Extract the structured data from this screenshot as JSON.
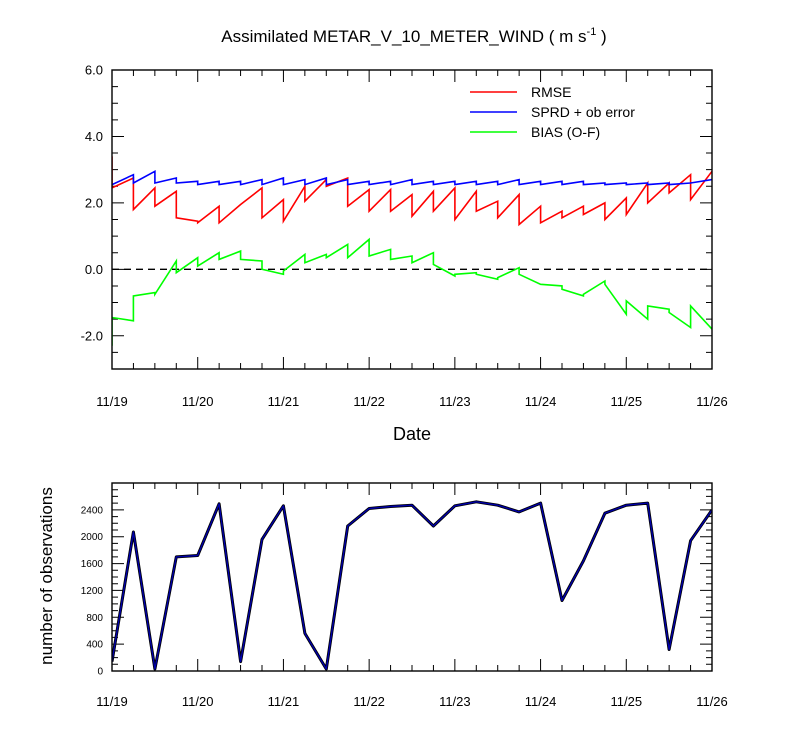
{
  "figure": {
    "title_main": "Assimilated METAR_V_10_METER_WIND ( m s",
    "title_sup": "-1",
    "title_end": " )"
  },
  "chart_data": [
    {
      "type": "line",
      "title": "Assimilated METAR_V_10_METER_WIND ( m s-1 )",
      "xlabel": "Date",
      "ylabel": "",
      "x_ticks": [
        "11/19",
        "11/20",
        "11/21",
        "11/22",
        "11/23",
        "11/24",
        "11/25",
        "11/26"
      ],
      "y_ticks": [
        "-2.0",
        "0.0",
        "2.0",
        "4.0",
        "6.0"
      ],
      "xlim": [
        0,
        7
      ],
      "ylim": [
        -3,
        6
      ],
      "legend": {
        "placement": "top-right",
        "entries": [
          "RMSE",
          "SPRD + ob error",
          "BIAS (O-F)"
        ]
      },
      "reference_line": {
        "y": 0,
        "style": "dashed"
      },
      "series": [
        {
          "name": "RMSE",
          "color": "#ff0000",
          "points": [
            [
              0,
              3.4
            ],
            [
              0,
              2.45
            ],
            [
              0.25,
              2.75
            ],
            [
              0.25,
              1.8
            ],
            [
              0.5,
              2.45
            ],
            [
              0.5,
              1.9
            ],
            [
              0.75,
              2.35
            ],
            [
              0.75,
              1.55
            ],
            [
              1,
              1.45
            ],
            [
              1,
              1.4
            ],
            [
              1.25,
              1.9
            ],
            [
              1.25,
              1.4
            ],
            [
              1.5,
              1.95
            ],
            [
              1.5,
              1.95
            ],
            [
              1.75,
              2.45
            ],
            [
              1.75,
              1.55
            ],
            [
              2,
              2.1
            ],
            [
              2,
              1.45
            ],
            [
              2.25,
              2.5
            ],
            [
              2.25,
              2.05
            ],
            [
              2.5,
              2.7
            ],
            [
              2.5,
              2.5
            ],
            [
              2.75,
              2.75
            ],
            [
              2.75,
              1.9
            ],
            [
              3,
              2.4
            ],
            [
              3,
              1.75
            ],
            [
              3.25,
              2.4
            ],
            [
              3.25,
              1.75
            ],
            [
              3.5,
              2.25
            ],
            [
              3.5,
              1.6
            ],
            [
              3.75,
              2.35
            ],
            [
              3.75,
              1.75
            ],
            [
              4,
              2.45
            ],
            [
              4,
              1.5
            ],
            [
              4.25,
              2.35
            ],
            [
              4.25,
              1.75
            ],
            [
              4.5,
              2.05
            ],
            [
              4.5,
              1.55
            ],
            [
              4.75,
              2.25
            ],
            [
              4.75,
              1.35
            ],
            [
              5,
              1.9
            ],
            [
              5,
              1.4
            ],
            [
              5.25,
              1.75
            ],
            [
              5.25,
              1.55
            ],
            [
              5.5,
              1.9
            ],
            [
              5.5,
              1.65
            ],
            [
              5.75,
              2.0
            ],
            [
              5.75,
              1.5
            ],
            [
              6,
              2.15
            ],
            [
              6,
              1.65
            ],
            [
              6.25,
              2.6
            ],
            [
              6.25,
              2.0
            ],
            [
              6.5,
              2.6
            ],
            [
              6.5,
              2.3
            ],
            [
              6.75,
              2.85
            ],
            [
              6.75,
              2.1
            ],
            [
              7,
              2.95
            ]
          ]
        },
        {
          "name": "SPRD + ob error",
          "color": "#0000ff",
          "points": [
            [
              0,
              2.55
            ],
            [
              0.25,
              2.85
            ],
            [
              0.25,
              2.6
            ],
            [
              0.5,
              2.95
            ],
            [
              0.5,
              2.6
            ],
            [
              0.75,
              2.75
            ],
            [
              0.75,
              2.6
            ],
            [
              1,
              2.65
            ],
            [
              1,
              2.55
            ],
            [
              1.25,
              2.65
            ],
            [
              1.25,
              2.55
            ],
            [
              1.5,
              2.65
            ],
            [
              1.5,
              2.55
            ],
            [
              1.75,
              2.7
            ],
            [
              1.75,
              2.55
            ],
            [
              2,
              2.75
            ],
            [
              2,
              2.55
            ],
            [
              2.25,
              2.7
            ],
            [
              2.25,
              2.55
            ],
            [
              2.5,
              2.75
            ],
            [
              2.5,
              2.55
            ],
            [
              2.75,
              2.7
            ],
            [
              2.75,
              2.55
            ],
            [
              3,
              2.65
            ],
            [
              3,
              2.55
            ],
            [
              3.25,
              2.65
            ],
            [
              3.25,
              2.55
            ],
            [
              3.5,
              2.7
            ],
            [
              3.5,
              2.55
            ],
            [
              3.75,
              2.65
            ],
            [
              3.75,
              2.55
            ],
            [
              4,
              2.65
            ],
            [
              4,
              2.55
            ],
            [
              4.25,
              2.65
            ],
            [
              4.25,
              2.55
            ],
            [
              4.5,
              2.65
            ],
            [
              4.5,
              2.55
            ],
            [
              4.75,
              2.7
            ],
            [
              4.75,
              2.55
            ],
            [
              5,
              2.65
            ],
            [
              5,
              2.55
            ],
            [
              5.25,
              2.65
            ],
            [
              5.25,
              2.55
            ],
            [
              5.5,
              2.65
            ],
            [
              5.5,
              2.55
            ],
            [
              5.75,
              2.6
            ],
            [
              5.75,
              2.55
            ],
            [
              6,
              2.6
            ],
            [
              6,
              2.55
            ],
            [
              6.25,
              2.6
            ],
            [
              6.25,
              2.55
            ],
            [
              6.5,
              2.6
            ],
            [
              6.5,
              2.55
            ],
            [
              6.75,
              2.6
            ],
            [
              6.75,
              2.6
            ],
            [
              7,
              2.7
            ]
          ]
        },
        {
          "name": "BIAS (O-F)",
          "color": "#00ff00",
          "points": [
            [
              0,
              -2.3
            ],
            [
              0,
              -1.45
            ],
            [
              0.25,
              -1.55
            ],
            [
              0.25,
              -0.8
            ],
            [
              0.5,
              -0.7
            ],
            [
              0.5,
              -0.75
            ],
            [
              0.75,
              0.25
            ],
            [
              0.75,
              -0.1
            ],
            [
              1,
              0.35
            ],
            [
              1,
              0.1
            ],
            [
              1.25,
              0.5
            ],
            [
              1.25,
              0.3
            ],
            [
              1.5,
              0.55
            ],
            [
              1.5,
              0.3
            ],
            [
              1.75,
              0.25
            ],
            [
              1.75,
              0.0
            ],
            [
              2,
              -0.15
            ],
            [
              2,
              -0.05
            ],
            [
              2.25,
              0.45
            ],
            [
              2.25,
              0.2
            ],
            [
              2.5,
              0.45
            ],
            [
              2.5,
              0.35
            ],
            [
              2.75,
              0.75
            ],
            [
              2.75,
              0.35
            ],
            [
              3,
              0.9
            ],
            [
              3,
              0.4
            ],
            [
              3.25,
              0.6
            ],
            [
              3.25,
              0.3
            ],
            [
              3.5,
              0.4
            ],
            [
              3.5,
              0.2
            ],
            [
              3.75,
              0.5
            ],
            [
              3.75,
              0.15
            ],
            [
              4,
              -0.2
            ],
            [
              4,
              -0.15
            ],
            [
              4.25,
              -0.1
            ],
            [
              4.25,
              -0.15
            ],
            [
              4.5,
              -0.3
            ],
            [
              4.5,
              -0.25
            ],
            [
              4.75,
              0.05
            ],
            [
              4.75,
              -0.15
            ],
            [
              5,
              -0.45
            ],
            [
              5,
              -0.45
            ],
            [
              5.25,
              -0.5
            ],
            [
              5.25,
              -0.6
            ],
            [
              5.5,
              -0.8
            ],
            [
              5.5,
              -0.75
            ],
            [
              5.75,
              -0.35
            ],
            [
              5.75,
              -0.45
            ],
            [
              6,
              -1.35
            ],
            [
              6,
              -0.95
            ],
            [
              6.25,
              -1.5
            ],
            [
              6.25,
              -1.1
            ],
            [
              6.5,
              -1.2
            ],
            [
              6.5,
              -1.3
            ],
            [
              6.75,
              -1.75
            ],
            [
              6.75,
              -1.1
            ],
            [
              7,
              -1.8
            ]
          ]
        }
      ]
    },
    {
      "type": "line",
      "title": "",
      "xlabel": "",
      "ylabel": "number of observations",
      "x_ticks": [
        "11/19",
        "11/20",
        "11/21",
        "11/22",
        "11/23",
        "11/24",
        "11/25",
        "11/26"
      ],
      "y_ticks": [
        "0",
        "400",
        "800",
        "1200",
        "1600",
        "2000",
        "2400"
      ],
      "xlim": [
        0,
        7
      ],
      "ylim": [
        0,
        2800
      ],
      "series": [
        {
          "name": "",
          "colors": [
            "#000000",
            "#0000aa"
          ],
          "x": [
            0,
            0.25,
            0.5,
            0.75,
            1,
            1.25,
            1.5,
            1.75,
            2,
            2.25,
            2.5,
            2.75,
            3,
            3.25,
            3.5,
            3.75,
            4,
            4.25,
            4.5,
            4.75,
            5,
            5.25,
            5.5,
            5.75,
            6,
            6.25,
            6.5,
            6.75,
            7
          ],
          "values": [
            140,
            2070,
            30,
            1700,
            1720,
            2490,
            140,
            1960,
            2460,
            560,
            30,
            2160,
            2420,
            2450,
            2470,
            2160,
            2460,
            2520,
            2470,
            2370,
            2500,
            1050,
            1640,
            2350,
            2470,
            2500,
            320,
            1940,
            2400
          ]
        }
      ]
    }
  ]
}
